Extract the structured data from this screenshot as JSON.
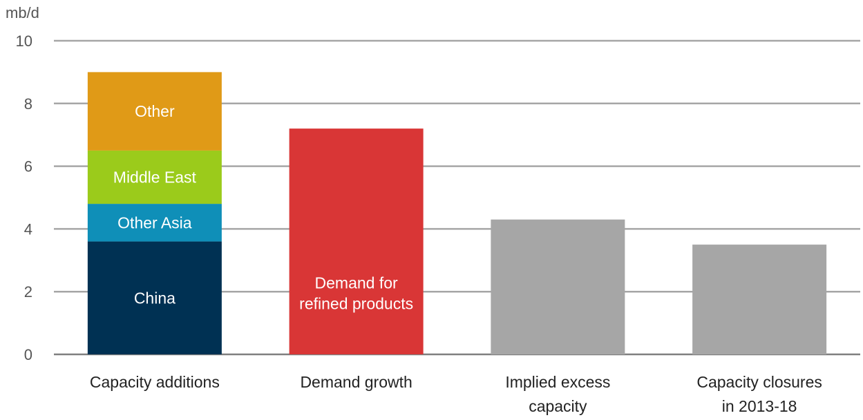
{
  "chart_data": {
    "type": "bar",
    "stacked": true,
    "ylabel": "mb/d",
    "ylim": [
      0,
      10
    ],
    "yticks": [
      0,
      2,
      4,
      6,
      8,
      10
    ],
    "grid": true,
    "bars": [
      {
        "category": [
          "Capacity additions"
        ],
        "segments": [
          {
            "label": "China",
            "value": 3.6,
            "color": "#003153"
          },
          {
            "label": "Other Asia",
            "value": 1.2,
            "color": "#0f8fb8"
          },
          {
            "label": "Middle East",
            "value": 1.7,
            "color": "#9bcb1b"
          },
          {
            "label": "Other",
            "value": 2.5,
            "color": "#e09a17"
          }
        ]
      },
      {
        "category": [
          "Demand growth"
        ],
        "segments": [
          {
            "label": [
              "Demand for",
              "refined products"
            ],
            "value": 7.2,
            "color": "#d93636"
          }
        ]
      },
      {
        "category": [
          "Implied excess",
          "capacity"
        ],
        "segments": [
          {
            "label": [],
            "value": 4.3,
            "color": "#a6a6a6"
          }
        ]
      },
      {
        "category": [
          "Capacity closures",
          "in 2013-18"
        ],
        "segments": [
          {
            "label": [],
            "value": 3.5,
            "color": "#a6a6a6"
          }
        ]
      }
    ]
  }
}
